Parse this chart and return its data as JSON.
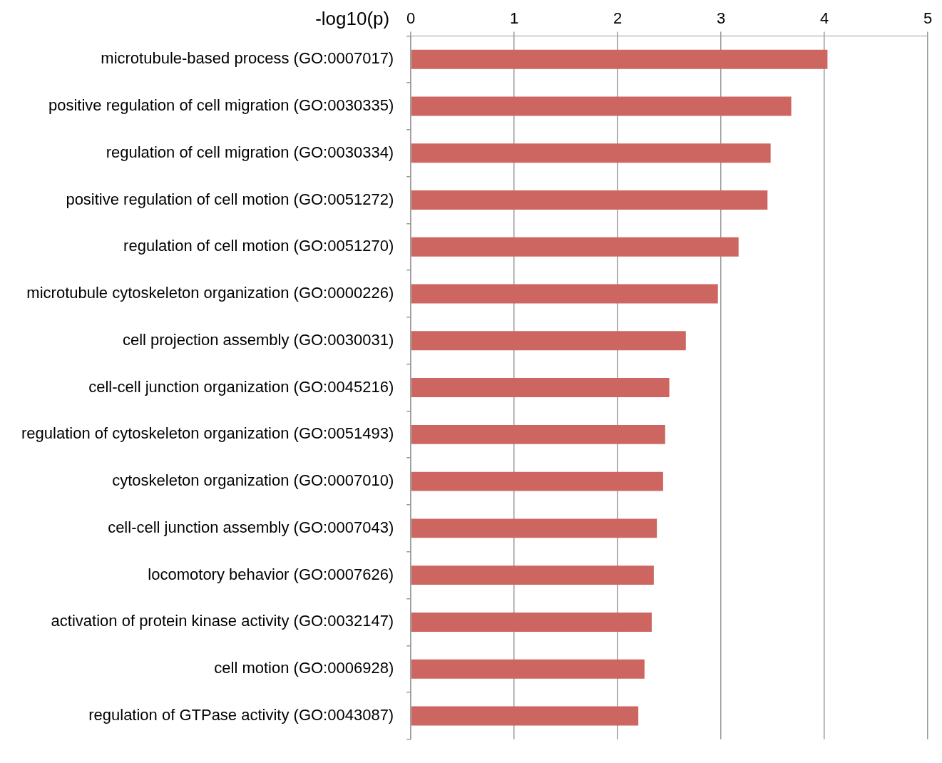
{
  "chart_data": {
    "type": "bar",
    "orientation": "horizontal",
    "xlabel": "-log10(p)",
    "categories": [
      "microtubule-based process (GO:0007017)",
      "positive regulation of cell migration (GO:0030335)",
      "regulation of cell migration (GO:0030334)",
      "positive regulation of cell motion (GO:0051272)",
      "regulation of cell motion (GO:0051270)",
      "microtubule cytoskeleton organization (GO:0000226)",
      "cell projection assembly (GO:0030031)",
      "cell-cell junction organization (GO:0045216)",
      "regulation of cytoskeleton organization (GO:0051493)",
      "cytoskeleton organization (GO:0007010)",
      "cell-cell junction assembly (GO:0007043)",
      "locomotory behavior (GO:0007626)",
      "activation of protein kinase activity (GO:0032147)",
      "cell motion (GO:0006928)",
      "regulation of GTPase activity (GO:0043087)"
    ],
    "values": [
      4.03,
      3.68,
      3.48,
      3.45,
      3.17,
      2.97,
      2.66,
      2.5,
      2.46,
      2.44,
      2.38,
      2.35,
      2.33,
      2.26,
      2.2
    ],
    "color": "#cd6660",
    "xlim": [
      0,
      5
    ],
    "xticks": [
      0,
      1,
      2,
      3,
      4,
      5
    ],
    "grid": "x",
    "legend": false
  }
}
